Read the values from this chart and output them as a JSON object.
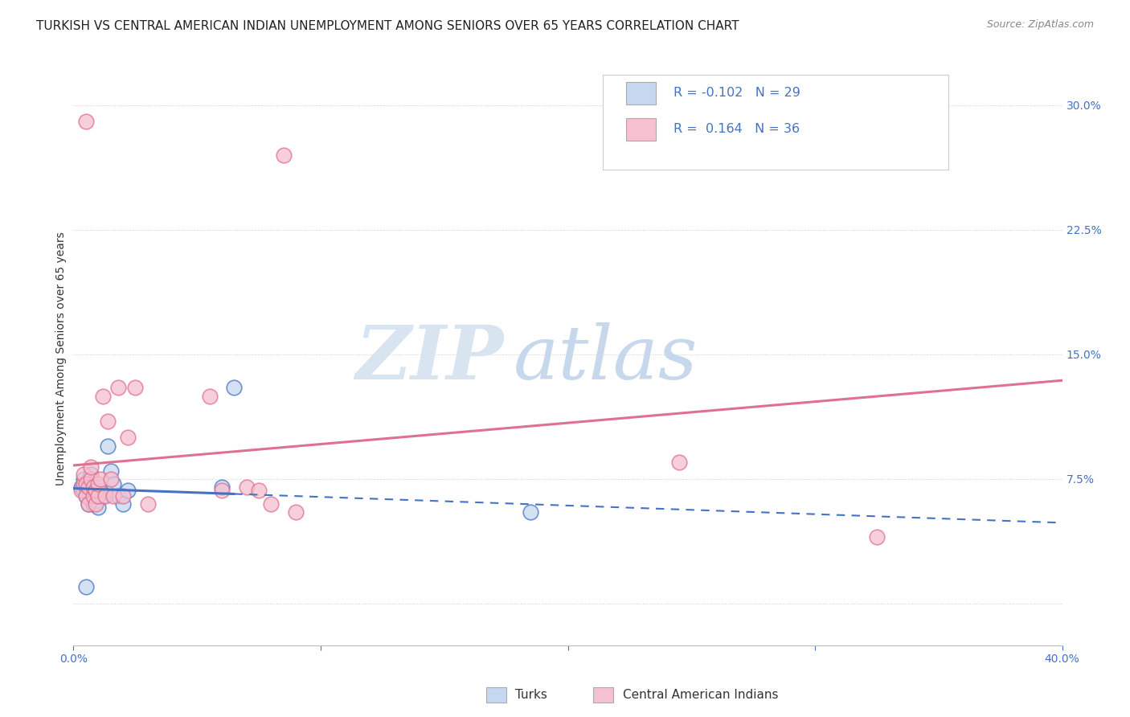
{
  "title": "TURKISH VS CENTRAL AMERICAN INDIAN UNEMPLOYMENT AMONG SENIORS OVER 65 YEARS CORRELATION CHART",
  "source": "Source: ZipAtlas.com",
  "ylabel": "Unemployment Among Seniors over 65 years",
  "xlim": [
    0.0,
    0.4
  ],
  "ylim": [
    -0.025,
    0.32
  ],
  "xticks": [
    0.0,
    0.1,
    0.2,
    0.3,
    0.4
  ],
  "xtick_labels": [
    "0.0%",
    "",
    "",
    "",
    "40.0%"
  ],
  "yticks_right": [
    0.0,
    0.075,
    0.15,
    0.225,
    0.3
  ],
  "ytick_labels_right": [
    "",
    "7.5%",
    "15.0%",
    "22.5%",
    "30.0%"
  ],
  "legend_blue_r": "-0.102",
  "legend_blue_n": "29",
  "legend_pink_r": "0.164",
  "legend_pink_n": "36",
  "blue_scatter_x": [
    0.003,
    0.004,
    0.004,
    0.005,
    0.005,
    0.006,
    0.006,
    0.007,
    0.007,
    0.008,
    0.008,
    0.008,
    0.009,
    0.009,
    0.01,
    0.01,
    0.011,
    0.012,
    0.013,
    0.014,
    0.015,
    0.016,
    0.018,
    0.02,
    0.022,
    0.06,
    0.065,
    0.185,
    0.005
  ],
  "blue_scatter_y": [
    0.07,
    0.068,
    0.075,
    0.065,
    0.072,
    0.06,
    0.068,
    0.072,
    0.078,
    0.06,
    0.065,
    0.07,
    0.062,
    0.068,
    0.058,
    0.065,
    0.07,
    0.065,
    0.068,
    0.095,
    0.08,
    0.072,
    0.065,
    0.06,
    0.068,
    0.07,
    0.13,
    0.055,
    0.01
  ],
  "pink_scatter_x": [
    0.003,
    0.004,
    0.004,
    0.005,
    0.005,
    0.006,
    0.006,
    0.007,
    0.007,
    0.008,
    0.008,
    0.009,
    0.009,
    0.01,
    0.01,
    0.011,
    0.012,
    0.013,
    0.014,
    0.015,
    0.016,
    0.018,
    0.02,
    0.022,
    0.025,
    0.03,
    0.055,
    0.06,
    0.07,
    0.075,
    0.08,
    0.085,
    0.09,
    0.245,
    0.325,
    0.005
  ],
  "pink_scatter_y": [
    0.068,
    0.072,
    0.078,
    0.065,
    0.072,
    0.06,
    0.07,
    0.075,
    0.082,
    0.065,
    0.07,
    0.06,
    0.068,
    0.065,
    0.072,
    0.075,
    0.125,
    0.065,
    0.11,
    0.075,
    0.065,
    0.13,
    0.065,
    0.1,
    0.13,
    0.06,
    0.125,
    0.068,
    0.07,
    0.068,
    0.06,
    0.27,
    0.055,
    0.085,
    0.04,
    0.29
  ],
  "blue_line_color": "#4472c4",
  "pink_line_color": "#e07090",
  "blue_scatter_facecolor": "#c5d8f0",
  "pink_scatter_facecolor": "#f5c0d0",
  "background_color": "#ffffff",
  "grid_color": "#cccccc",
  "title_color": "#222222",
  "tick_color": "#4472c4",
  "source_color": "#888888",
  "watermark_zip_color": "#d8e4f0",
  "watermark_atlas_color": "#c8d8ec"
}
